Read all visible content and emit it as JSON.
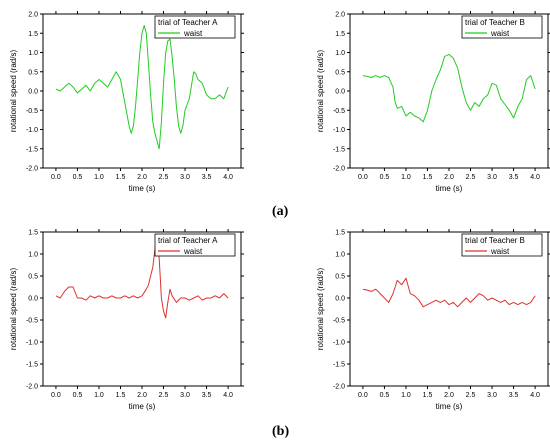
{
  "captions": {
    "a": "(a)",
    "b": "(b)"
  },
  "chart_data": [
    {
      "type": "line",
      "row": "a",
      "position": "left",
      "x_ticks": [
        "0.0",
        "0.5",
        "1.0",
        "1.5",
        "2.0",
        "2.5",
        "3.0",
        "3.5",
        "4.0"
      ],
      "y_ticks": [
        "2.0",
        "1.5",
        "1.0",
        "0.5",
        "0.0",
        "-0.5",
        "-1.0",
        "-1.5",
        "-2.0"
      ],
      "xlabel": "time (s)",
      "ylabel": "rotational speed (rad/s)",
      "xlim": [
        -0.3,
        4.3
      ],
      "ylim": [
        -2.0,
        2.0
      ],
      "legend": {
        "title": "trial of Teacher A",
        "entry": "waist",
        "placement": "top-right"
      },
      "color": "#22cc22",
      "series": [
        {
          "name": "waist",
          "x": [
            0.0,
            0.1,
            0.2,
            0.3,
            0.4,
            0.5,
            0.6,
            0.7,
            0.8,
            0.9,
            1.0,
            1.1,
            1.2,
            1.3,
            1.4,
            1.5,
            1.6,
            1.7,
            1.75,
            1.8,
            1.85,
            1.9,
            1.95,
            2.0,
            2.05,
            2.1,
            2.15,
            2.2,
            2.25,
            2.3,
            2.35,
            2.4,
            2.45,
            2.5,
            2.55,
            2.6,
            2.65,
            2.7,
            2.75,
            2.8,
            2.85,
            2.9,
            2.95,
            3.0,
            3.1,
            3.2,
            3.25,
            3.3,
            3.4,
            3.5,
            3.6,
            3.7,
            3.8,
            3.9,
            4.0
          ],
          "y": [
            0.05,
            0.0,
            0.1,
            0.2,
            0.1,
            -0.05,
            0.05,
            0.15,
            0.0,
            0.2,
            0.3,
            0.2,
            0.1,
            0.3,
            0.5,
            0.3,
            -0.3,
            -0.9,
            -1.1,
            -0.9,
            -0.4,
            0.3,
            1.0,
            1.5,
            1.7,
            1.5,
            0.7,
            -0.1,
            -0.8,
            -1.1,
            -1.3,
            -1.5,
            -0.8,
            0.2,
            1.0,
            1.3,
            1.35,
            0.9,
            0.3,
            -0.4,
            -0.9,
            -1.1,
            -0.9,
            -0.5,
            -0.2,
            0.5,
            0.45,
            0.3,
            0.2,
            -0.1,
            -0.2,
            -0.2,
            -0.1,
            -0.2,
            0.1
          ]
        }
      ]
    },
    {
      "type": "line",
      "row": "a",
      "position": "right",
      "x_ticks": [
        "0.0",
        "0.5",
        "1.0",
        "1.5",
        "2.0",
        "2.5",
        "3.0",
        "3.5",
        "4.0"
      ],
      "y_ticks": [
        "2.0",
        "1.5",
        "1.0",
        "0.5",
        "0.0",
        "-0.5",
        "-1.0",
        "-1.5",
        "-2.0"
      ],
      "xlabel": "time (s)",
      "ylabel": "rotational speed (rad/s)",
      "xlim": [
        -0.3,
        4.3
      ],
      "ylim": [
        -2.0,
        2.0
      ],
      "legend": {
        "title": "trial of Teacher B",
        "entry": "waist",
        "placement": "top-right"
      },
      "color": "#22cc22",
      "series": [
        {
          "name": "waist",
          "x": [
            0.0,
            0.1,
            0.2,
            0.3,
            0.4,
            0.5,
            0.6,
            0.7,
            0.75,
            0.8,
            0.9,
            1.0,
            1.1,
            1.2,
            1.3,
            1.4,
            1.5,
            1.6,
            1.7,
            1.8,
            1.9,
            2.0,
            2.1,
            2.2,
            2.3,
            2.4,
            2.5,
            2.6,
            2.7,
            2.8,
            2.9,
            3.0,
            3.1,
            3.2,
            3.3,
            3.4,
            3.5,
            3.6,
            3.7,
            3.8,
            3.9,
            4.0
          ],
          "y": [
            0.4,
            0.38,
            0.35,
            0.4,
            0.35,
            0.4,
            0.35,
            0.1,
            -0.3,
            -0.45,
            -0.4,
            -0.65,
            -0.55,
            -0.65,
            -0.7,
            -0.8,
            -0.5,
            0.0,
            0.3,
            0.55,
            0.9,
            0.95,
            0.85,
            0.6,
            0.1,
            -0.3,
            -0.5,
            -0.3,
            -0.4,
            -0.2,
            -0.1,
            0.2,
            0.15,
            -0.2,
            -0.35,
            -0.5,
            -0.7,
            -0.4,
            -0.2,
            0.3,
            0.4,
            0.05
          ]
        }
      ]
    },
    {
      "type": "line",
      "row": "b",
      "position": "left",
      "x_ticks": [
        "0.0",
        "0.5",
        "1.0",
        "1.5",
        "2.0",
        "2.5",
        "3.0",
        "3.5",
        "4.0"
      ],
      "y_ticks": [
        "1.5",
        "1.0",
        "0.5",
        "0.0",
        "-0.5",
        "-1.0",
        "-1.5",
        "-2.0"
      ],
      "xlabel": "time (s)",
      "ylabel": "rotational speed (rad/s)",
      "xlim": [
        -0.3,
        4.3
      ],
      "ylim": [
        -2.0,
        1.5
      ],
      "legend": {
        "title": "trial of Teacher A",
        "entry": "waist",
        "placement": "top-right"
      },
      "color": "#e03030",
      "series": [
        {
          "name": "waist",
          "x": [
            0.0,
            0.1,
            0.2,
            0.3,
            0.4,
            0.5,
            0.6,
            0.7,
            0.8,
            0.9,
            1.0,
            1.1,
            1.2,
            1.3,
            1.4,
            1.5,
            1.6,
            1.7,
            1.8,
            1.9,
            2.0,
            2.1,
            2.15,
            2.2,
            2.25,
            2.3,
            2.35,
            2.4,
            2.45,
            2.5,
            2.55,
            2.6,
            2.65,
            2.7,
            2.8,
            2.9,
            3.0,
            3.1,
            3.2,
            3.3,
            3.4,
            3.5,
            3.6,
            3.7,
            3.8,
            3.9,
            4.0
          ],
          "y": [
            0.05,
            0.0,
            0.15,
            0.25,
            0.25,
            0.0,
            0.0,
            -0.05,
            0.05,
            0.0,
            0.05,
            0.0,
            0.0,
            0.05,
            0.0,
            0.0,
            0.05,
            0.0,
            0.05,
            0.0,
            0.05,
            0.2,
            0.3,
            0.5,
            0.7,
            1.1,
            1.2,
            0.9,
            0.0,
            -0.3,
            -0.45,
            -0.1,
            0.2,
            0.05,
            -0.1,
            0.0,
            0.0,
            -0.05,
            0.0,
            0.05,
            -0.05,
            0.0,
            0.0,
            0.05,
            0.0,
            0.1,
            0.0
          ]
        }
      ]
    },
    {
      "type": "line",
      "row": "b",
      "position": "right",
      "x_ticks": [
        "0.0",
        "0.5",
        "1.0",
        "1.5",
        "2.0",
        "2.5",
        "3.0",
        "3.5",
        "4.0"
      ],
      "y_ticks": [
        "1.5",
        "1.0",
        "0.5",
        "0.0",
        "-0.5",
        "-1.0",
        "-1.5",
        "-2.0"
      ],
      "xlabel": "time (s)",
      "ylabel": "rotational speed (rad/s)",
      "xlim": [
        -0.3,
        4.3
      ],
      "ylim": [
        -2.0,
        1.5
      ],
      "legend": {
        "title": "trial of Teacher B",
        "entry": "waist",
        "placement": "top-right"
      },
      "color": "#e03030",
      "series": [
        {
          "name": "waist",
          "x": [
            0.0,
            0.1,
            0.2,
            0.3,
            0.4,
            0.5,
            0.6,
            0.7,
            0.8,
            0.9,
            1.0,
            1.1,
            1.2,
            1.3,
            1.4,
            1.5,
            1.6,
            1.7,
            1.8,
            1.9,
            2.0,
            2.1,
            2.2,
            2.3,
            2.4,
            2.5,
            2.6,
            2.7,
            2.8,
            2.9,
            3.0,
            3.1,
            3.2,
            3.3,
            3.4,
            3.5,
            3.6,
            3.7,
            3.8,
            3.9,
            4.0
          ],
          "y": [
            0.2,
            0.18,
            0.15,
            0.2,
            0.1,
            0.0,
            -0.1,
            0.1,
            0.4,
            0.3,
            0.45,
            0.1,
            0.05,
            -0.05,
            -0.2,
            -0.15,
            -0.1,
            -0.05,
            -0.1,
            -0.05,
            -0.15,
            -0.1,
            -0.2,
            -0.1,
            0.0,
            -0.1,
            0.0,
            0.1,
            0.05,
            -0.05,
            0.0,
            -0.05,
            -0.1,
            -0.05,
            -0.15,
            -0.1,
            -0.15,
            -0.1,
            -0.15,
            -0.1,
            0.05
          ]
        }
      ]
    }
  ]
}
